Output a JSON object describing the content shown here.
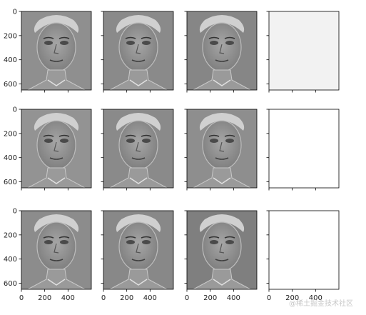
{
  "figure": {
    "rows": 3,
    "cols": 4,
    "watermark": "@稀土掘金技术社区"
  },
  "chart_data": {
    "type": "image-grid",
    "title": "",
    "x_axis": {
      "ticks": [
        0,
        200,
        400
      ],
      "range": [
        0,
        600
      ],
      "label_row": "bottom-only"
    },
    "y_axis": {
      "ticks": [
        0,
        200,
        400,
        600
      ],
      "range": [
        0,
        650
      ],
      "label_col": "left-only",
      "inverted": true
    },
    "panels": [
      {
        "row": 0,
        "col": 0,
        "content": "face",
        "tone": "#8f8f8f"
      },
      {
        "row": 0,
        "col": 1,
        "content": "face",
        "tone": "#8a8a8a"
      },
      {
        "row": 0,
        "col": 2,
        "content": "face",
        "tone": "#868686"
      },
      {
        "row": 0,
        "col": 3,
        "content": "blank",
        "tone": "#f2f2f2"
      },
      {
        "row": 1,
        "col": 0,
        "content": "face",
        "tone": "#939393"
      },
      {
        "row": 1,
        "col": 1,
        "content": "face",
        "tone": "#8a8a8a"
      },
      {
        "row": 1,
        "col": 2,
        "content": "face",
        "tone": "#8e8e8e"
      },
      {
        "row": 1,
        "col": 3,
        "content": "blank",
        "tone": "#ffffff"
      },
      {
        "row": 2,
        "col": 0,
        "content": "face",
        "tone": "#8c8c8c"
      },
      {
        "row": 2,
        "col": 1,
        "content": "face",
        "tone": "#888888"
      },
      {
        "row": 2,
        "col": 2,
        "content": "face",
        "tone": "#7f7f7f"
      },
      {
        "row": 2,
        "col": 3,
        "content": "blank",
        "tone": "#ffffff"
      }
    ],
    "colors": {
      "axes_edge": "#000000",
      "face_light": "#d9d9d9",
      "face_dark": "#3a3a3a"
    }
  }
}
